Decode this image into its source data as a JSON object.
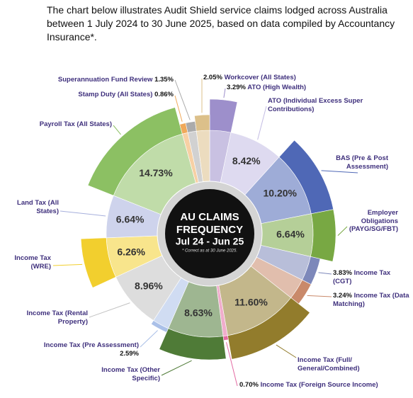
{
  "description": "The chart below illustrates Audit Shield service claims lodged across Australia between 1 July 2024 to 30 June 2025, based on data compiled by Accountancy Insurance*.",
  "chart_data": {
    "type": "pie",
    "center_lines": [
      "AU CLAIMS",
      "FREQUENCY",
      "Jul 24 - Jun 25"
    ],
    "note": "* Correct as at 30 June 2025.",
    "categories": [
      "ATO (High Wealth)",
      "ATO (Individual Excess Super Contributions)",
      "BAS (Pre & Post Assessment)",
      "Employer Obligations (PAYG/SG/FBT)",
      "Income Tax (CGT)",
      "Income Tax (Data Matching)",
      "Income Tax (Full/ General/Combined)",
      "Income Tax (Foreign Source Income)",
      "Income Tax (Other Specific)",
      "Income Tax (Pre Assessment)",
      "Income Tax (Rental Property)",
      "Income Tax (WRE)",
      "Land Tax (All States)",
      "Payroll Tax (All States)",
      "Stamp Duty (All States)",
      "Superannuation Fund Review",
      "Workcover (All States)"
    ],
    "values": [
      3.29,
      8.42,
      10.2,
      6.64,
      3.83,
      3.24,
      11.6,
      0.7,
      8.63,
      2.59,
      8.96,
      6.26,
      6.64,
      14.73,
      0.86,
      1.35,
      2.05
    ],
    "value_labels": [
      "3.29%",
      "8.42%",
      "10.20%",
      "6.64%",
      "3.83%",
      "3.24%",
      "11.60%",
      "0.70%",
      "8.63%",
      "2.59%",
      "8.96%",
      "6.26%",
      "6.64%",
      "14.73%",
      "0.86%",
      "1.35%",
      "2.05%"
    ],
    "colors": [
      "#9d8fcb",
      "#c3bce3",
      "#4f68b6",
      "#78a843",
      "#7d88ba",
      "#c9896a",
      "#927c2c",
      "#e36aa2",
      "#4f7b37",
      "#aac0e8",
      "#c2c2c2",
      "#f2cf2e",
      "#a6afdc",
      "#8cc063",
      "#f0a95a",
      "#ababab",
      "#dcc08a"
    ]
  }
}
